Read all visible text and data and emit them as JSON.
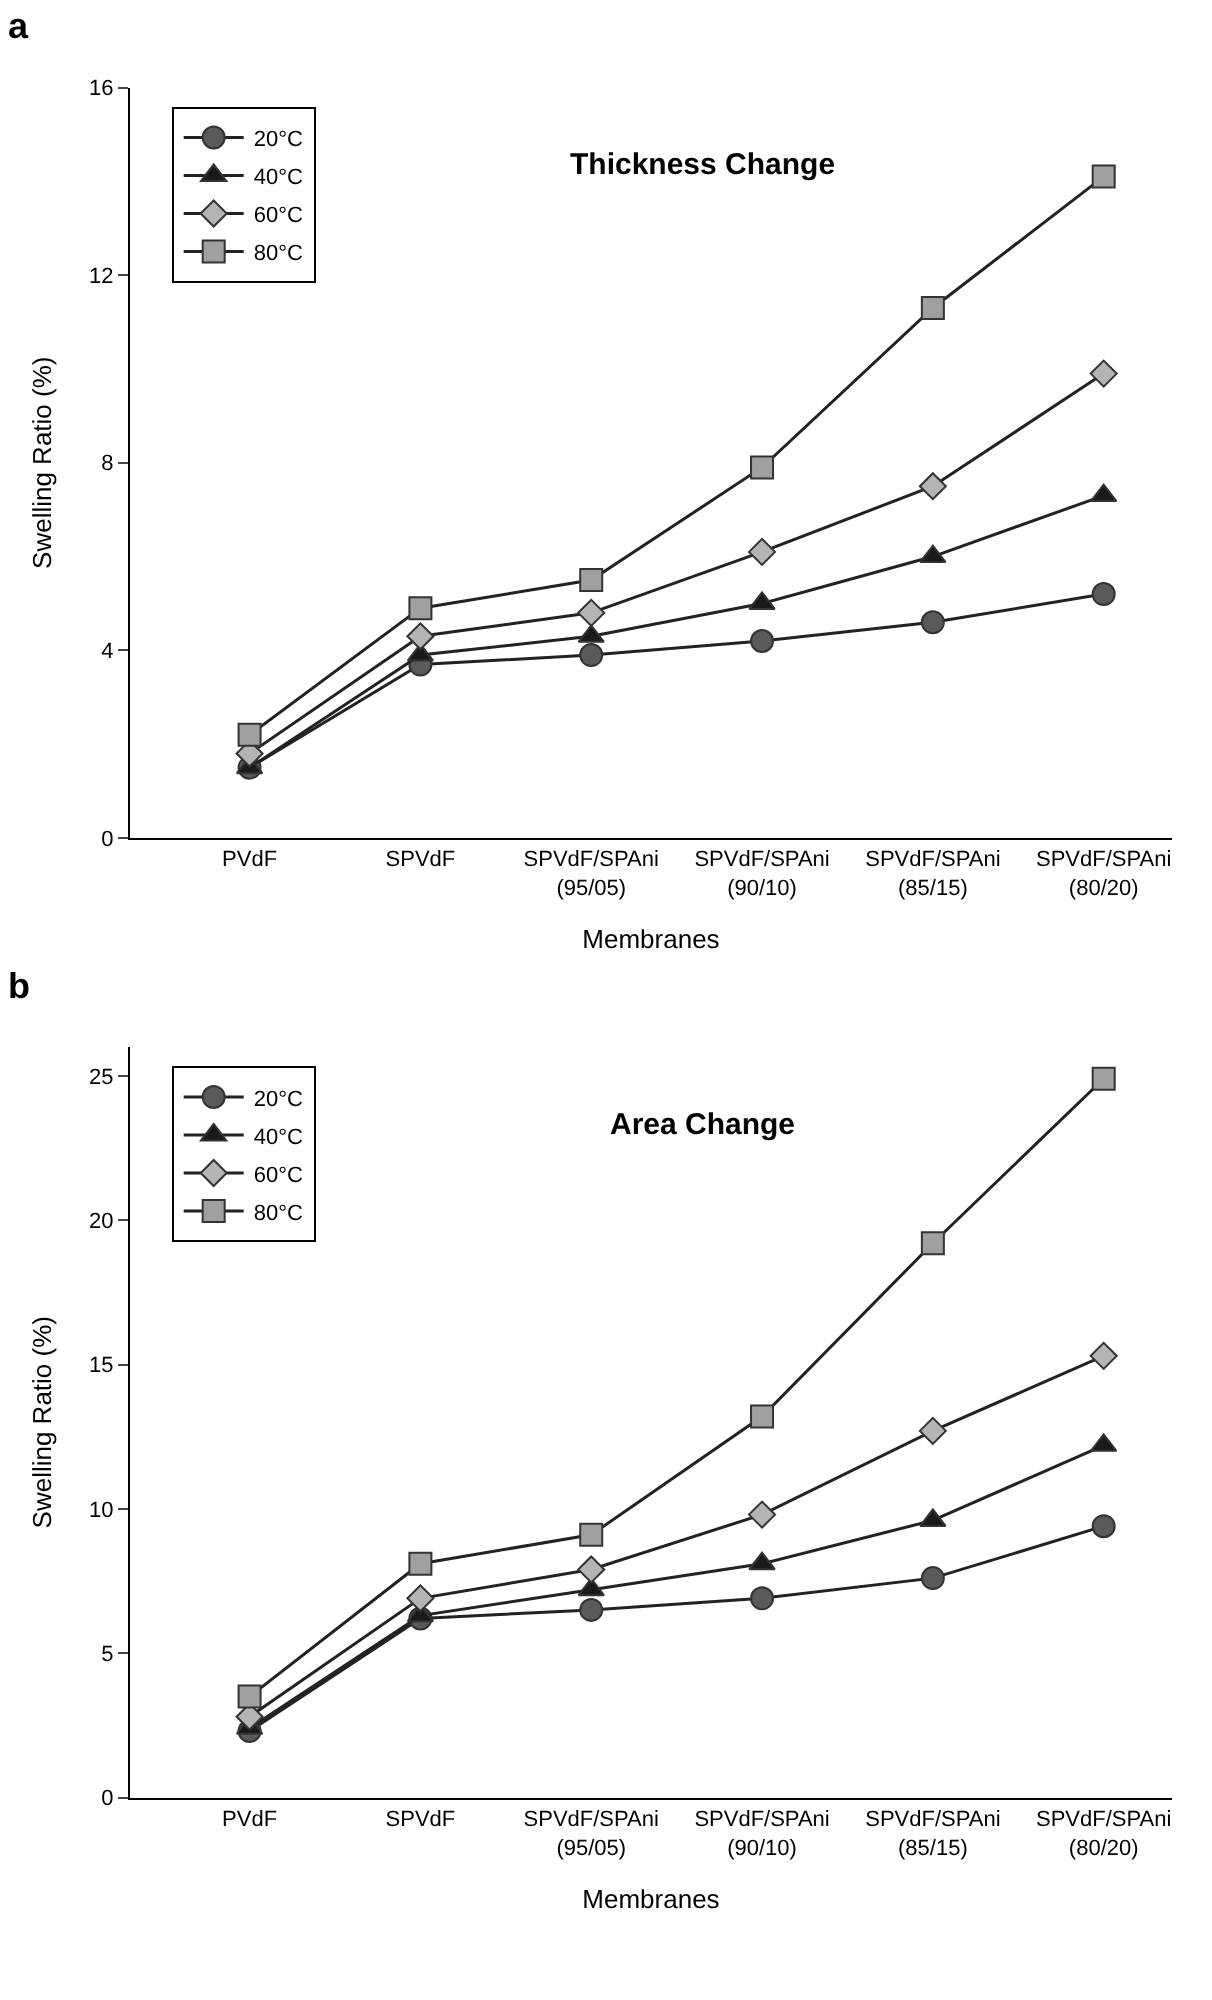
{
  "chart_data": [
    {
      "type": "line",
      "title": "Thickness Change",
      "annotations": [
        "a"
      ],
      "xlabel": "Membranes",
      "ylabel": "Swelling Ratio (%)",
      "categories": [
        "PVdF",
        "SPVdF",
        "SPVdF/SPAni\n(95/05)",
        "SPVdF/SPAni\n(90/10)",
        "SPVdF/SPAni\n(85/15)",
        "SPVdF/SPAni\n(80/20)"
      ],
      "ylim": [
        0,
        16
      ],
      "yticks": [
        0,
        4,
        8,
        12,
        16
      ],
      "legend": "top left",
      "series": [
        {
          "name": "20°C",
          "color": "#5a5a5a",
          "marker": "circle",
          "values": [
            1.5,
            3.7,
            3.9,
            4.2,
            4.6,
            5.2
          ]
        },
        {
          "name": "40°C",
          "color": "#1a1a1a",
          "marker": "triangle",
          "values": [
            1.5,
            3.9,
            4.3,
            5.0,
            6.0,
            7.3
          ]
        },
        {
          "name": "60°C",
          "color": "#b4b4b4",
          "marker": "diamond",
          "values": [
            1.8,
            4.3,
            4.8,
            6.1,
            7.5,
            9.9
          ]
        },
        {
          "name": "80°C",
          "color": "#a0a0a0",
          "marker": "square",
          "values": [
            2.2,
            4.9,
            5.5,
            7.9,
            11.3,
            14.1
          ]
        }
      ]
    },
    {
      "type": "line",
      "title": "Area Change",
      "annotations": [
        "b"
      ],
      "xlabel": "Membranes",
      "ylabel": "Swelling Ratio (%)",
      "categories": [
        "PVdF",
        "SPVdF",
        "SPVdF/SPAni\n(95/05)",
        "SPVdF/SPAni\n(90/10)",
        "SPVdF/SPAni\n(85/15)",
        "SPVdF/SPAni\n(80/20)"
      ],
      "ylim": [
        0,
        26
      ],
      "yticks": [
        0,
        5,
        10,
        15,
        20,
        25
      ],
      "legend": "top left",
      "series": [
        {
          "name": "20°C",
          "color": "#5a5a5a",
          "marker": "circle",
          "values": [
            2.3,
            6.2,
            6.5,
            6.9,
            7.6,
            9.4
          ]
        },
        {
          "name": "40°C",
          "color": "#1a1a1a",
          "marker": "triangle",
          "values": [
            2.4,
            6.3,
            7.2,
            8.1,
            9.6,
            12.2
          ]
        },
        {
          "name": "60°C",
          "color": "#b4b4b4",
          "marker": "diamond",
          "values": [
            2.8,
            6.9,
            7.9,
            9.8,
            12.7,
            15.3
          ]
        },
        {
          "name": "80°C",
          "color": "#a0a0a0",
          "marker": "square",
          "values": [
            3.5,
            8.1,
            9.1,
            13.2,
            19.2,
            24.9
          ]
        }
      ]
    }
  ]
}
